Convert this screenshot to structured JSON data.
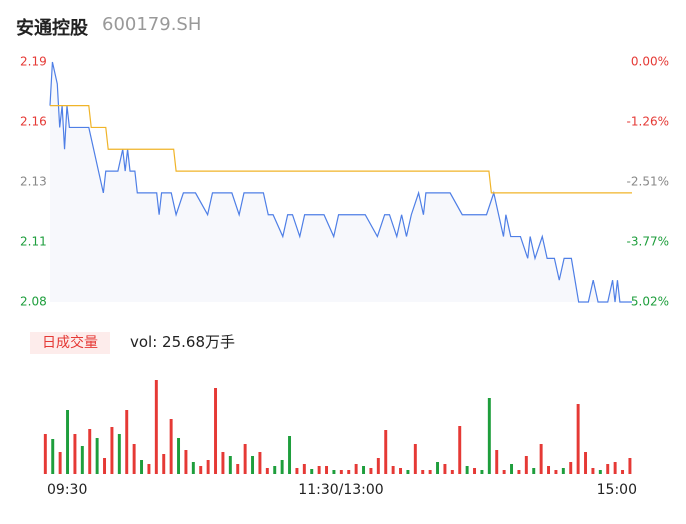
{
  "header": {
    "title": "安通控股",
    "code": "600179.SH"
  },
  "volume_badge": "日成交量",
  "volume_text": "vol: 25.68万手",
  "chart_data": [
    {
      "type": "line",
      "xlim": [
        0,
        240
      ],
      "xticks": [
        {
          "value": 0,
          "label": "09:30"
        },
        {
          "value": 120,
          "label": "11:30/13:00"
        },
        {
          "value": 240,
          "label": "15:00"
        }
      ],
      "ylim": [
        2.08,
        2.19
      ],
      "yticks": [
        {
          "value": 2.19,
          "label": "2.19"
        },
        {
          "value": 2.1625,
          "label": "2.16"
        },
        {
          "value": 2.135,
          "label": "2.13"
        },
        {
          "value": 2.1075,
          "label": "2.11"
        },
        {
          "value": 2.08,
          "label": "2.08"
        }
      ],
      "y2lim": [
        -5.02,
        0
      ],
      "y2ticks": [
        {
          "value": 0,
          "label": "0.00%"
        },
        {
          "value": -1.255,
          "label": "-1.26%"
        },
        {
          "value": -2.51,
          "label": "-2.51%"
        },
        {
          "value": -3.765,
          "label": "-3.77%"
        },
        {
          "value": -5.02,
          "label": "-5.02%"
        }
      ],
      "tick_colors": [
        "#e53935",
        "#e53935",
        "#888888",
        "#1e9e3c",
        "#1e9e3c"
      ],
      "fill": "#f7f8fc",
      "series": [
        {
          "color": "#4f7fe6",
          "x": [
            0,
            1,
            3,
            4,
            5,
            6,
            7,
            8,
            12,
            16,
            18,
            20,
            22,
            23,
            25,
            28,
            30,
            31,
            32,
            33,
            35,
            36,
            40,
            44,
            45,
            46,
            50,
            52,
            55,
            60,
            65,
            67,
            70,
            75,
            78,
            80,
            84,
            88,
            90,
            92,
            96,
            98,
            100,
            103,
            105,
            107,
            110,
            113,
            117,
            119,
            121,
            125,
            130,
            135,
            138,
            140,
            143,
            145,
            147,
            149,
            152,
            154,
            155,
            158,
            165,
            170,
            175,
            180,
            183,
            185,
            187,
            188,
            190,
            194,
            197,
            198,
            200,
            203,
            205,
            208,
            210,
            212,
            215,
            218,
            222,
            224,
            226,
            228,
            230,
            232,
            233,
            234,
            235,
            240
          ],
          "values": [
            2.17,
            2.19,
            2.18,
            2.16,
            2.17,
            2.15,
            2.17,
            2.16,
            2.16,
            2.16,
            2.15,
            2.14,
            2.13,
            2.14,
            2.14,
            2.14,
            2.15,
            2.14,
            2.15,
            2.14,
            2.14,
            2.13,
            2.13,
            2.13,
            2.12,
            2.13,
            2.13,
            2.12,
            2.13,
            2.13,
            2.12,
            2.13,
            2.13,
            2.13,
            2.12,
            2.13,
            2.13,
            2.13,
            2.12,
            2.12,
            2.11,
            2.12,
            2.12,
            2.11,
            2.12,
            2.12,
            2.12,
            2.12,
            2.11,
            2.12,
            2.12,
            2.12,
            2.12,
            2.11,
            2.12,
            2.12,
            2.11,
            2.12,
            2.11,
            2.12,
            2.13,
            2.12,
            2.13,
            2.13,
            2.13,
            2.12,
            2.12,
            2.12,
            2.13,
            2.12,
            2.11,
            2.12,
            2.11,
            2.11,
            2.1,
            2.11,
            2.1,
            2.11,
            2.1,
            2.1,
            2.09,
            2.1,
            2.1,
            2.08,
            2.08,
            2.09,
            2.08,
            2.08,
            2.08,
            2.09,
            2.08,
            2.09,
            2.08,
            2.08
          ]
        },
        {
          "color": "#f0b429",
          "x": [
            0,
            16,
            17,
            23,
            24,
            51,
            52,
            181,
            182,
            240
          ],
          "values": [
            2.17,
            2.17,
            2.16,
            2.16,
            2.15,
            2.15,
            2.14,
            2.14,
            2.13,
            2.13
          ]
        }
      ]
    },
    {
      "type": "bar",
      "ylim": [
        0,
        7520
      ],
      "up_color": "#e53935",
      "down_color": "#1e9e3c",
      "values": [
        3200,
        2800,
        1760,
        5120,
        3200,
        2240,
        3600,
        2880,
        1280,
        3760,
        3200,
        5120,
        2400,
        1120,
        800,
        7520,
        1600,
        4400,
        2880,
        1920,
        960,
        640,
        1120,
        6880,
        1760,
        1440,
        800,
        2400,
        1440,
        1760,
        480,
        640,
        1120,
        3040,
        480,
        800,
        400,
        640,
        640,
        320,
        320,
        320,
        800,
        640,
        480,
        1280,
        3520,
        640,
        480,
        320,
        2400,
        320,
        320,
        960,
        800,
        320,
        3840,
        640,
        480,
        320,
        6080,
        1920,
        320,
        800,
        320,
        1440,
        480,
        2400,
        640,
        320,
        480,
        960,
        5600,
        1760,
        480,
        320,
        800,
        960,
        320,
        1280
      ],
      "directions": [
        1,
        -1,
        1,
        -1,
        1,
        -1,
        1,
        -1,
        1,
        1,
        -1,
        1,
        1,
        -1,
        1,
        1,
        1,
        1,
        -1,
        1,
        -1,
        1,
        1,
        1,
        1,
        -1,
        1,
        1,
        -1,
        1,
        1,
        -1,
        -1,
        -1,
        1,
        1,
        -1,
        1,
        1,
        -1,
        1,
        1,
        1,
        -1,
        1,
        1,
        1,
        1,
        1,
        -1,
        1,
        1,
        1,
        -1,
        1,
        1,
        1,
        -1,
        1,
        -1,
        -1,
        1,
        1,
        -1,
        1,
        1,
        -1,
        1,
        1,
        1,
        -1,
        1,
        1,
        1,
        1,
        -1,
        1,
        1,
        1,
        1
      ]
    }
  ]
}
